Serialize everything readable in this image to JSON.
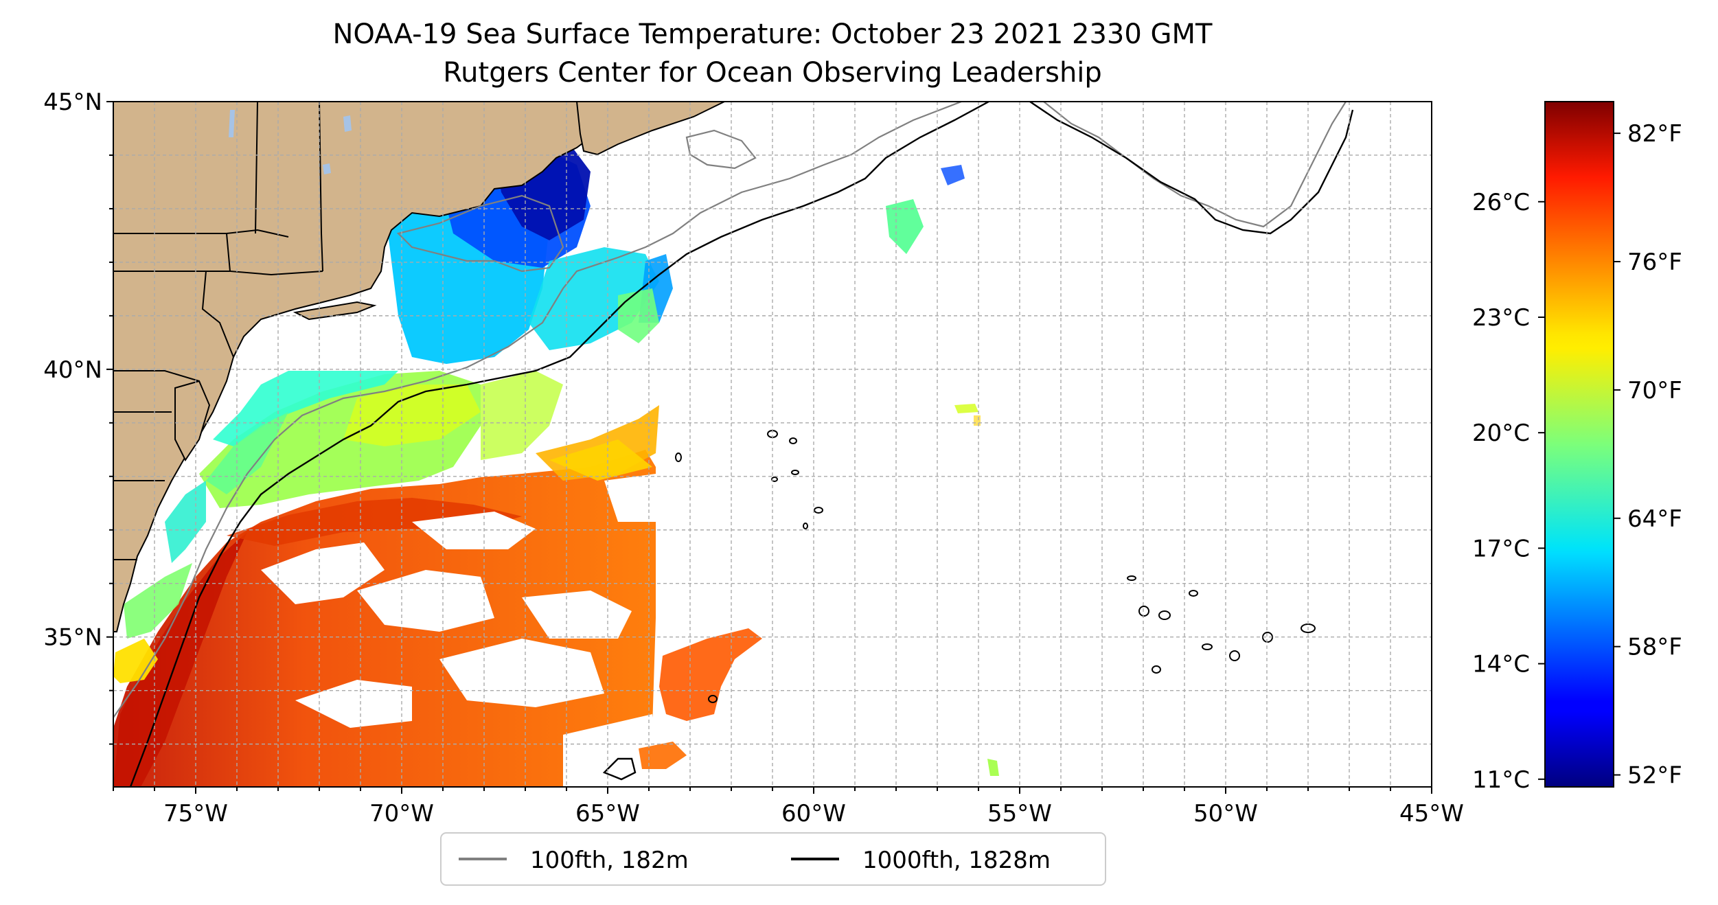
{
  "map": {
    "title_line1": "NOAA-19 Sea Surface Temperature: October 23 2021 2330 GMT",
    "title_line2": "Rutgers Center for Ocean Observing Leadership",
    "extent": {
      "lon": [
        -77,
        -45
      ],
      "lat": [
        32.2,
        45
      ]
    },
    "lon_ticks": [
      {
        "value": -75,
        "label": "75°W"
      },
      {
        "value": -70,
        "label": "70°W"
      },
      {
        "value": -65,
        "label": "65°W"
      },
      {
        "value": -60,
        "label": "60°W"
      },
      {
        "value": -55,
        "label": "55°W"
      },
      {
        "value": -50,
        "label": "50°W"
      },
      {
        "value": -45,
        "label": "45°W"
      }
    ],
    "lat_ticks": [
      {
        "value": 45,
        "label": "45°N"
      },
      {
        "value": 40,
        "label": "40°N"
      },
      {
        "value": 35,
        "label": "35°N"
      }
    ],
    "gridlines": "dashed, every 1°",
    "colors": {
      "land": "#d2b48c",
      "lakes": "#a6c3e6",
      "ocean_no_data": "#ffffff",
      "contour_100fth": "#808080",
      "contour_1000fth": "#000000"
    }
  },
  "colorbar": {
    "colormap": "jet",
    "range_c": [
      10.8,
      28.6
    ],
    "celsius_ticks": [
      {
        "value": 11,
        "label": "11°C"
      },
      {
        "value": 14,
        "label": "14°C"
      },
      {
        "value": 17,
        "label": "17°C"
      },
      {
        "value": 20,
        "label": "20°C"
      },
      {
        "value": 23,
        "label": "23°C"
      },
      {
        "value": 26,
        "label": "26°C"
      }
    ],
    "fahrenheit_ticks": [
      {
        "value": 52,
        "label": "52°F"
      },
      {
        "value": 58,
        "label": "58°F"
      },
      {
        "value": 64,
        "label": "64°F"
      },
      {
        "value": 70,
        "label": "70°F"
      },
      {
        "value": 76,
        "label": "76°F"
      },
      {
        "value": 82,
        "label": "82°F"
      }
    ]
  },
  "legend": {
    "placement": "bottom-center",
    "entries": [
      {
        "label": "100fth, 182m",
        "color": "#808080"
      },
      {
        "label": "1000fth, 1828m",
        "color": "#000000"
      }
    ]
  }
}
